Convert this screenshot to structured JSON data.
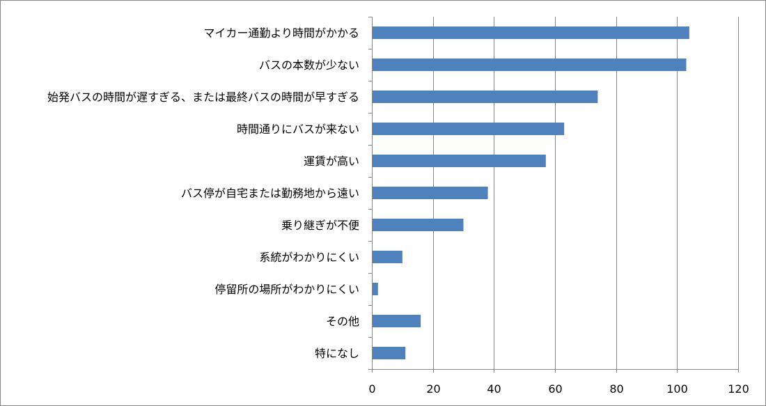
{
  "chart_data": {
    "type": "bar",
    "orientation": "horizontal",
    "categories": [
      "マイカー通勤より時間がかかる",
      "バスの本数が少ない",
      "始発バスの時間が遅すぎる、または最終バスの時間が早すぎる",
      "時間通りにバスが来ない",
      "運賃が高い",
      "バス停が自宅または勤務地から遠い",
      "乗り継ぎが不便",
      "系統がわかりにくい",
      "停留所の場所がわかりにくい",
      "その他",
      "特になし"
    ],
    "values": [
      104,
      103,
      74,
      63,
      57,
      38,
      30,
      10,
      2,
      16,
      11
    ],
    "xlim": [
      0,
      120
    ],
    "xticks": [
      0,
      20,
      40,
      60,
      80,
      100,
      120
    ],
    "grid": true,
    "legend": "none",
    "title": "",
    "xlabel": "",
    "ylabel": "",
    "colors": {
      "bar": "#4f81bd",
      "grid": "#868686",
      "axis": "#868686"
    }
  }
}
